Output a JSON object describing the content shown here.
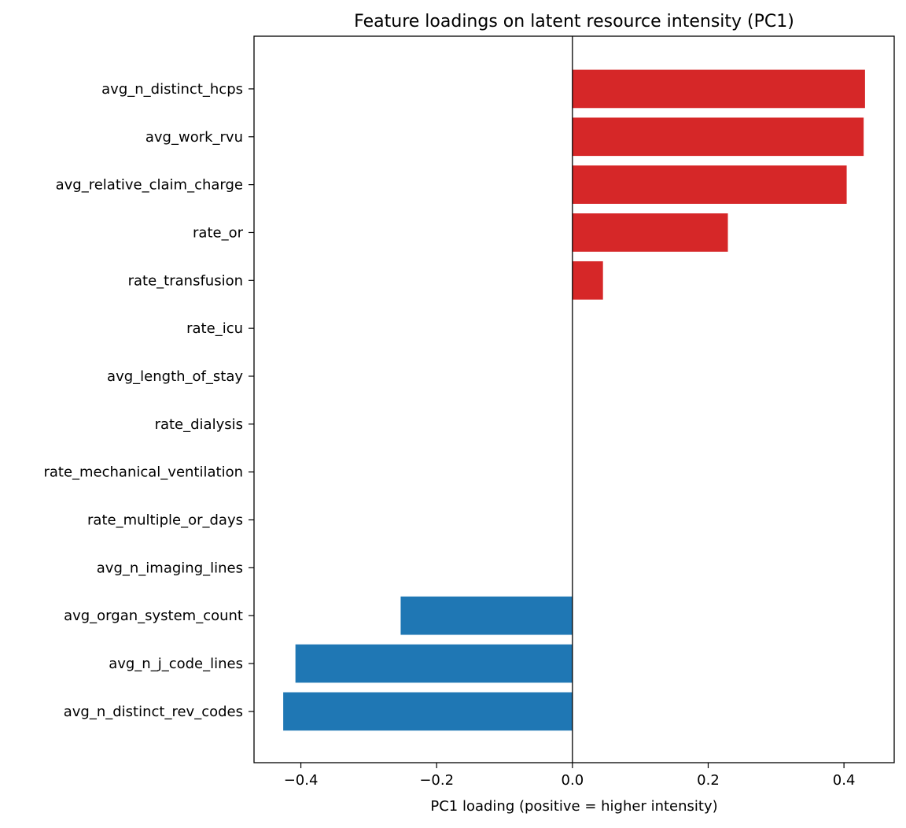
{
  "chart_data": {
    "type": "bar",
    "orientation": "horizontal",
    "title": "Feature loadings on latent resource intensity (PC1)",
    "xlabel": "PC1 loading (positive = higher intensity)",
    "ylabel": "",
    "categories": [
      "avg_n_distinct_hcps",
      "avg_work_rvu",
      "avg_relative_claim_charge",
      "rate_or",
      "rate_transfusion",
      "rate_icu",
      "avg_length_of_stay",
      "rate_dialysis",
      "rate_mechanical_ventilation",
      "rate_multiple_or_days",
      "avg_n_imaging_lines",
      "avg_organ_system_count",
      "avg_n_j_code_lines",
      "avg_n_distinct_rev_codes"
    ],
    "values": [
      0.431,
      0.429,
      0.404,
      0.229,
      0.045,
      0,
      0,
      0,
      0,
      0,
      0,
      -0.253,
      -0.408,
      -0.426
    ],
    "xlim": [
      -0.469,
      0.474
    ],
    "xticks": [
      -0.4,
      -0.2,
      0.0,
      0.2,
      0.4
    ],
    "xtick_labels": [
      "−0.4",
      "−0.2",
      "0.0",
      "0.2",
      "0.4"
    ],
    "positive_color": "#d62728",
    "negative_color": "#1f77b4",
    "grid": false,
    "zero_line": true
  }
}
